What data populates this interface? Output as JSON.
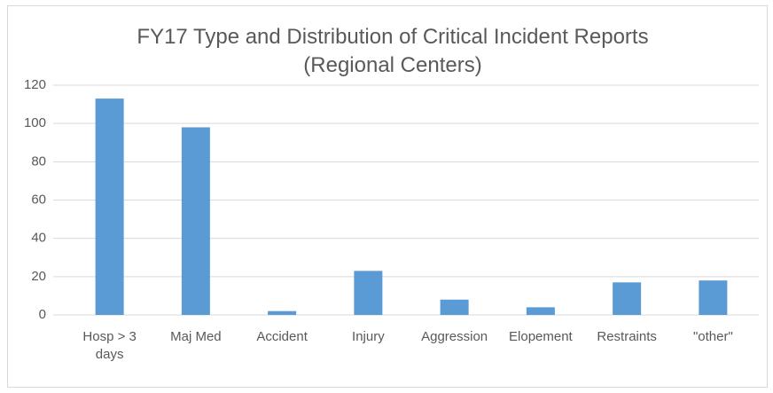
{
  "chart_data": {
    "type": "bar",
    "title": "FY17 Type and Distribution of Critical Incident Reports (Regional Centers)",
    "categories": [
      "Hosp > 3 days",
      "Maj Med",
      "Accident",
      "Injury",
      "Aggression",
      "Elopement",
      "Restraints",
      "\"other\""
    ],
    "values": [
      113,
      98,
      2,
      23,
      8,
      4,
      17,
      18
    ],
    "color": "#5b9bd5",
    "ylim": [
      0,
      120
    ],
    "yticks": [
      0,
      20,
      40,
      60,
      80,
      100,
      120
    ],
    "grid": true
  }
}
